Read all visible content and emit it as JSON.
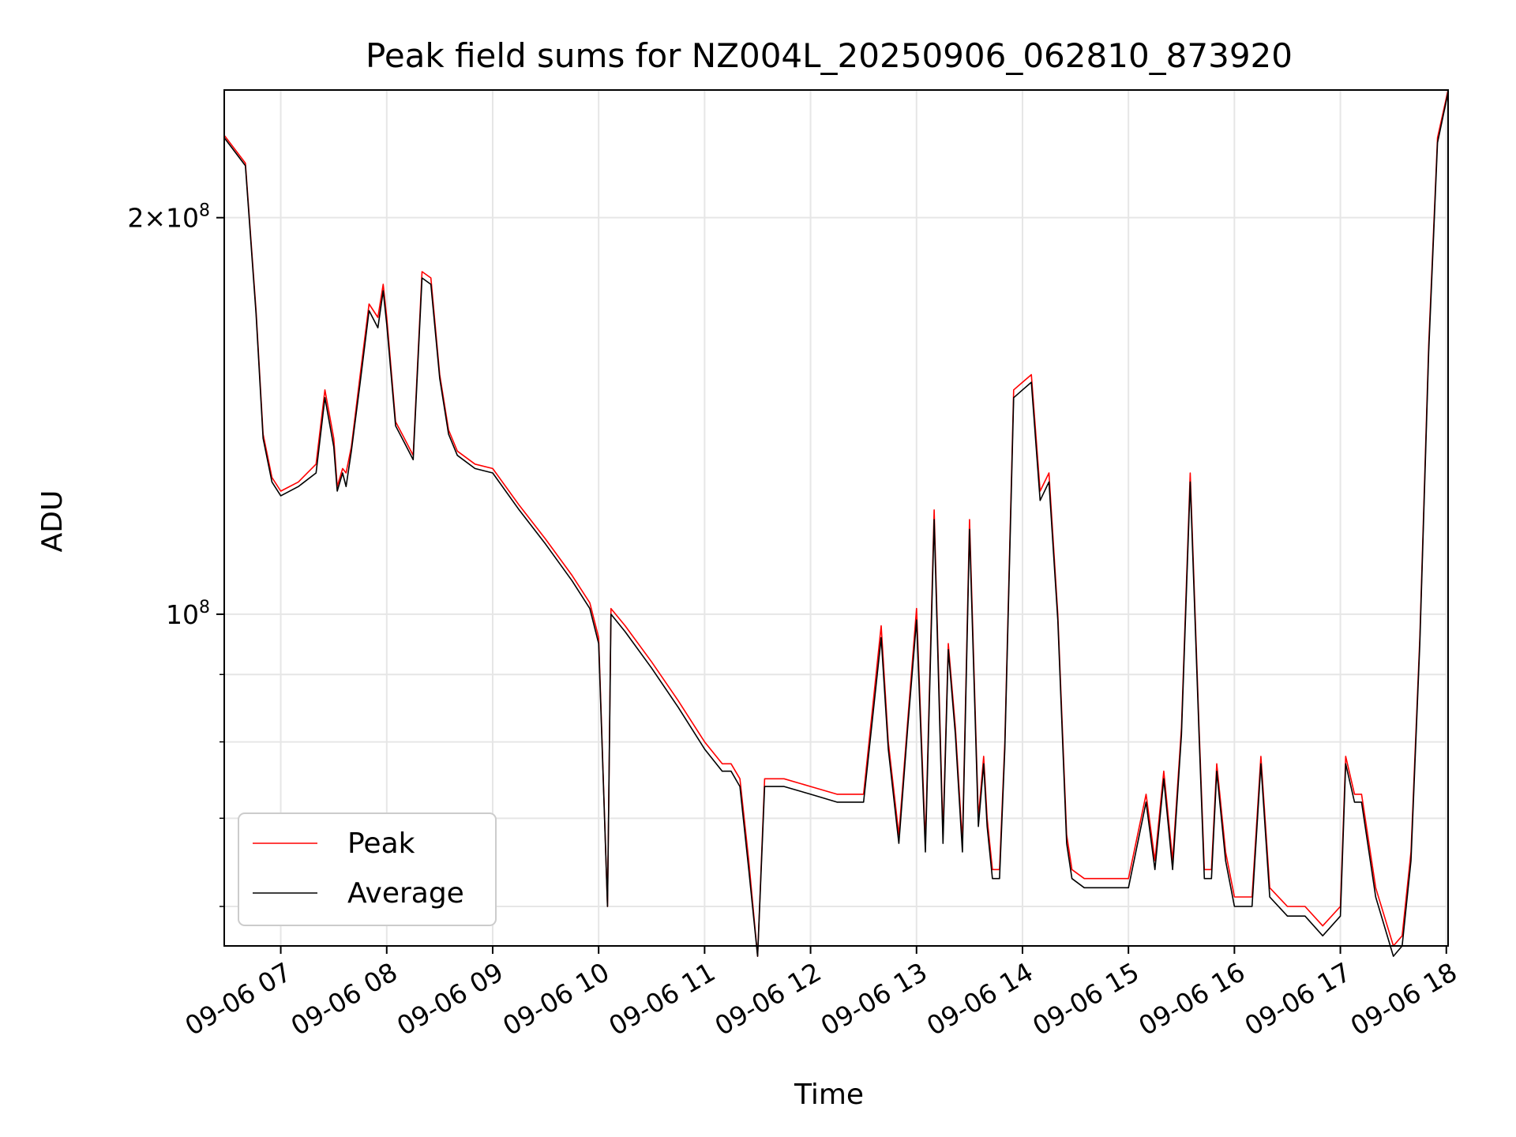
{
  "chart_data": {
    "type": "line",
    "title": "Peak field sums for NZ004L_20250906_062810_873920",
    "xlabel": "Time",
    "ylabel": "ADU",
    "y_scale": "log",
    "ylim": [
      56000000,
      250000000
    ],
    "xlim": [
      "09-06 06:28",
      "09-06 18:01"
    ],
    "y_tick_labels": [
      {
        "value": 200000000,
        "mantissa": "2",
        "exponent": "8",
        "text": "2×10^8"
      },
      {
        "value": 100000000,
        "mantissa": "",
        "exponent": "8",
        "text": "10^8"
      }
    ],
    "y_minor_ticks": [
      60000000,
      70000000,
      80000000,
      90000000
    ],
    "x_tick_labels": [
      {
        "time": "09-06 07:00",
        "label": "09-06 07"
      },
      {
        "time": "09-06 08:00",
        "label": "09-06 08"
      },
      {
        "time": "09-06 09:00",
        "label": "09-06 09"
      },
      {
        "time": "09-06 10:00",
        "label": "09-06 10"
      },
      {
        "time": "09-06 11:00",
        "label": "09-06 11"
      },
      {
        "time": "09-06 12:00",
        "label": "09-06 12"
      },
      {
        "time": "09-06 13:00",
        "label": "09-06 13"
      },
      {
        "time": "09-06 14:00",
        "label": "09-06 14"
      },
      {
        "time": "09-06 15:00",
        "label": "09-06 15"
      },
      {
        "time": "09-06 16:00",
        "label": "09-06 16"
      },
      {
        "time": "09-06 17:00",
        "label": "09-06 17"
      },
      {
        "time": "09-06 18:00",
        "label": "09-06 18"
      }
    ],
    "grid": true,
    "legend_position": "lower-left",
    "series": [
      {
        "name": "Peak",
        "color": "#ff0000",
        "x": [
          "09-06 06:28",
          "09-06 06:40",
          "09-06 06:46",
          "09-06 06:50",
          "09-06 06:55",
          "09-06 07:00",
          "09-06 07:10",
          "09-06 07:20",
          "09-06 07:25",
          "09-06 07:30",
          "09-06 07:32",
          "09-06 07:35",
          "09-06 07:37",
          "09-06 07:40",
          "09-06 07:45",
          "09-06 07:50",
          "09-06 07:55",
          "09-06 07:58",
          "09-06 08:00",
          "09-06 08:05",
          "09-06 08:10",
          "09-06 08:15",
          "09-06 08:20",
          "09-06 08:25",
          "09-06 08:30",
          "09-06 08:35",
          "09-06 08:40",
          "09-06 08:50",
          "09-06 09:00",
          "09-06 09:15",
          "09-06 09:30",
          "09-06 09:45",
          "09-06 09:55",
          "09-06 10:00",
          "09-06 10:05",
          "09-06 10:07",
          "09-06 10:15",
          "09-06 10:30",
          "09-06 10:45",
          "09-06 11:00",
          "09-06 11:10",
          "09-06 11:15",
          "09-06 11:20",
          "09-06 11:25",
          "09-06 11:30",
          "09-06 11:34",
          "09-06 11:37",
          "09-06 11:45",
          "09-06 12:00",
          "09-06 12:15",
          "09-06 12:30",
          "09-06 12:40",
          "09-06 12:44",
          "09-06 12:50",
          "09-06 12:55",
          "09-06 13:00",
          "09-06 13:05",
          "09-06 13:10",
          "09-06 13:15",
          "09-06 13:18",
          "09-06 13:22",
          "09-06 13:26",
          "09-06 13:30",
          "09-06 13:35",
          "09-06 13:38",
          "09-06 13:40",
          "09-06 13:43",
          "09-06 13:47",
          "09-06 13:50",
          "09-06 13:55",
          "09-06 14:00",
          "09-06 14:05",
          "09-06 14:10",
          "09-06 14:15",
          "09-06 14:20",
          "09-06 14:25",
          "09-06 14:28",
          "09-06 14:35",
          "09-06 14:45",
          "09-06 15:00",
          "09-06 15:10",
          "09-06 15:15",
          "09-06 15:20",
          "09-06 15:25",
          "09-06 15:30",
          "09-06 15:35",
          "09-06 15:40",
          "09-06 15:43",
          "09-06 15:47",
          "09-06 15:50",
          "09-06 15:55",
          "09-06 16:00",
          "09-06 16:10",
          "09-06 16:15",
          "09-06 16:20",
          "09-06 16:30",
          "09-06 16:40",
          "09-06 16:50",
          "09-06 17:00",
          "09-06 17:03",
          "09-06 17:08",
          "09-06 17:12",
          "09-06 17:20",
          "09-06 17:30",
          "09-06 17:35",
          "09-06 17:40",
          "09-06 17:45",
          "09-06 17:50",
          "09-06 17:55",
          "09-06 18:01"
        ],
        "y": [
          231000000,
          220000000,
          170000000,
          137000000,
          127000000,
          124000000,
          126000000,
          130000000,
          148000000,
          136000000,
          125000000,
          129000000,
          128000000,
          134000000,
          152000000,
          172000000,
          168000000,
          178000000,
          168000000,
          140000000,
          136000000,
          132000000,
          182000000,
          180000000,
          152000000,
          138000000,
          133000000,
          130000000,
          129000000,
          121000000,
          114000000,
          107000000,
          102000000,
          96000000,
          60000000,
          101000000,
          98000000,
          92000000,
          86000000,
          80000000,
          77000000,
          77000000,
          75000000,
          65000000,
          55000000,
          75000000,
          75000000,
          75000000,
          74000000,
          73000000,
          73000000,
          98000000,
          80000000,
          68000000,
          83000000,
          101000000,
          67000000,
          120000000,
          68000000,
          95000000,
          82000000,
          67000000,
          118000000,
          70000000,
          78000000,
          70000000,
          64000000,
          64000000,
          80000000,
          148000000,
          150000000,
          152000000,
          124000000,
          128000000,
          100000000,
          68000000,
          64000000,
          63000000,
          63000000,
          63000000,
          73000000,
          65000000,
          76000000,
          65000000,
          82000000,
          128000000,
          82000000,
          64000000,
          64000000,
          77000000,
          66000000,
          61000000,
          61000000,
          78000000,
          62000000,
          60000000,
          60000000,
          58000000,
          60000000,
          78000000,
          73000000,
          73000000,
          62000000,
          56000000,
          57000000,
          66000000,
          96000000,
          160000000,
          230000000,
          250000000
        ]
      },
      {
        "name": "Average",
        "color": "#000000",
        "x": [
          "09-06 06:28",
          "09-06 06:40",
          "09-06 06:46",
          "09-06 06:50",
          "09-06 06:55",
          "09-06 07:00",
          "09-06 07:10",
          "09-06 07:20",
          "09-06 07:25",
          "09-06 07:30",
          "09-06 07:32",
          "09-06 07:35",
          "09-06 07:37",
          "09-06 07:40",
          "09-06 07:45",
          "09-06 07:50",
          "09-06 07:55",
          "09-06 07:58",
          "09-06 08:00",
          "09-06 08:05",
          "09-06 08:10",
          "09-06 08:15",
          "09-06 08:20",
          "09-06 08:25",
          "09-06 08:30",
          "09-06 08:35",
          "09-06 08:40",
          "09-06 08:50",
          "09-06 09:00",
          "09-06 09:15",
          "09-06 09:30",
          "09-06 09:45",
          "09-06 09:55",
          "09-06 10:00",
          "09-06 10:05",
          "09-06 10:07",
          "09-06 10:15",
          "09-06 10:30",
          "09-06 10:45",
          "09-06 11:00",
          "09-06 11:10",
          "09-06 11:15",
          "09-06 11:20",
          "09-06 11:25",
          "09-06 11:30",
          "09-06 11:34",
          "09-06 11:37",
          "09-06 11:45",
          "09-06 12:00",
          "09-06 12:15",
          "09-06 12:30",
          "09-06 12:40",
          "09-06 12:44",
          "09-06 12:50",
          "09-06 12:55",
          "09-06 13:00",
          "09-06 13:05",
          "09-06 13:10",
          "09-06 13:15",
          "09-06 13:18",
          "09-06 13:22",
          "09-06 13:26",
          "09-06 13:30",
          "09-06 13:35",
          "09-06 13:38",
          "09-06 13:40",
          "09-06 13:43",
          "09-06 13:47",
          "09-06 13:50",
          "09-06 13:55",
          "09-06 14:00",
          "09-06 14:05",
          "09-06 14:10",
          "09-06 14:15",
          "09-06 14:20",
          "09-06 14:25",
          "09-06 14:28",
          "09-06 14:35",
          "09-06 14:45",
          "09-06 15:00",
          "09-06 15:10",
          "09-06 15:15",
          "09-06 15:20",
          "09-06 15:25",
          "09-06 15:30",
          "09-06 15:35",
          "09-06 15:40",
          "09-06 15:43",
          "09-06 15:47",
          "09-06 15:50",
          "09-06 15:55",
          "09-06 16:00",
          "09-06 16:10",
          "09-06 16:15",
          "09-06 16:20",
          "09-06 16:30",
          "09-06 16:40",
          "09-06 16:50",
          "09-06 17:00",
          "09-06 17:03",
          "09-06 17:08",
          "09-06 17:12",
          "09-06 17:20",
          "09-06 17:30",
          "09-06 17:35",
          "09-06 17:40",
          "09-06 17:45",
          "09-06 17:50",
          "09-06 17:55",
          "09-06 18:01"
        ],
        "y": [
          230000000,
          219000000,
          169000000,
          136000000,
          126000000,
          123000000,
          125000000,
          128000000,
          146000000,
          134000000,
          124000000,
          128000000,
          125000000,
          133000000,
          150000000,
          170000000,
          165000000,
          176000000,
          166000000,
          139000000,
          135000000,
          131000000,
          180000000,
          178000000,
          151000000,
          137000000,
          132000000,
          129000000,
          128000000,
          120000000,
          113000000,
          106000000,
          101000000,
          95000000,
          60000000,
          100000000,
          97000000,
          91000000,
          85000000,
          79000000,
          76000000,
          76000000,
          74000000,
          64000000,
          55000000,
          74000000,
          74000000,
          74000000,
          73000000,
          72000000,
          72000000,
          96000000,
          79000000,
          67000000,
          82000000,
          99000000,
          66000000,
          118000000,
          67000000,
          94000000,
          81000000,
          66000000,
          116000000,
          69000000,
          77000000,
          69000000,
          63000000,
          63000000,
          79000000,
          146000000,
          148000000,
          150000000,
          122000000,
          126000000,
          99000000,
          67000000,
          63000000,
          62000000,
          62000000,
          62000000,
          72000000,
          64000000,
          75000000,
          64000000,
          81000000,
          126000000,
          81000000,
          63000000,
          63000000,
          76000000,
          65000000,
          60000000,
          60000000,
          77000000,
          61000000,
          59000000,
          59000000,
          57000000,
          59000000,
          77000000,
          72000000,
          72000000,
          61000000,
          55000000,
          56000000,
          65000000,
          95000000,
          158000000,
          228000000,
          249000000
        ]
      }
    ]
  }
}
